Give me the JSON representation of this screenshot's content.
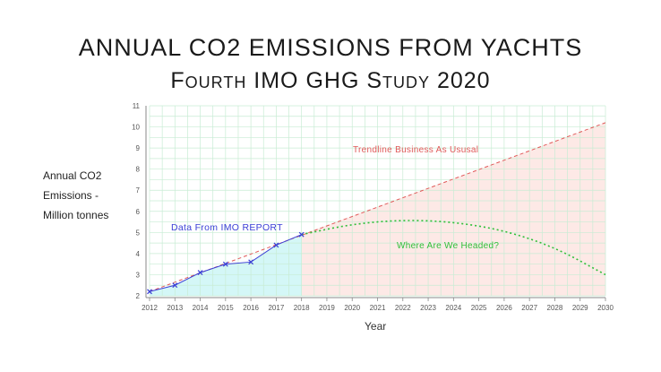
{
  "chart_data": {
    "type": "line",
    "title": "ANNUAL CO2 EMISSIONS FROM YACHTS",
    "subtitle": "Fourth IMO GHG Study 2020",
    "ylabel_lines": [
      "Annual CO2",
      "Emissions -",
      "Million tonnes"
    ],
    "xlabel": "Year",
    "xlim": [
      2012,
      2030
    ],
    "ylim": [
      2,
      11
    ],
    "x_ticks": [
      2012,
      2013,
      2014,
      2015,
      2016,
      2017,
      2018,
      2019,
      2020,
      2021,
      2022,
      2023,
      2024,
      2025,
      2026,
      2027,
      2028,
      2029,
      2030
    ],
    "y_ticks": [
      2,
      3,
      4,
      5,
      6,
      7,
      8,
      9,
      10,
      11
    ],
    "grid": true,
    "series": [
      {
        "name": "Data From IMO REPORT",
        "color": "#3b3fd6",
        "fill": "#d4f7f7",
        "marker": "x",
        "x": [
          2012,
          2013,
          2014,
          2015,
          2016,
          2017,
          2018
        ],
        "y": [
          2.2,
          2.5,
          3.1,
          3.5,
          3.6,
          4.4,
          4.9
        ]
      },
      {
        "name": "Trendline Business As Ususal",
        "color": "#e05a5a",
        "fill": "#fde9e6",
        "style": "dashed",
        "x": [
          2012,
          2030
        ],
        "y": [
          2.2,
          10.2
        ]
      },
      {
        "name": "Where Are We Headed?",
        "color": "#2fbf3a",
        "style": "dotted",
        "x": [
          2018,
          2020,
          2022,
          2024,
          2026,
          2028,
          2030
        ],
        "y": [
          4.9,
          5.4,
          5.6,
          5.5,
          5.1,
          4.3,
          3.0
        ]
      }
    ]
  }
}
